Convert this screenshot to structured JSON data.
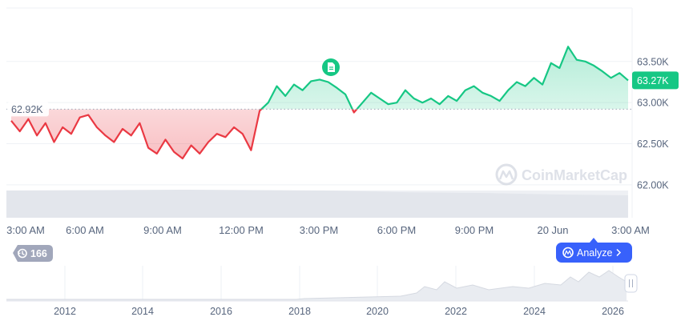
{
  "chart_data": {
    "type": "area",
    "series": [
      {
        "name": "",
        "x": [
          "3:00 AM",
          "3:20 AM",
          "3:40 AM",
          "4:00 AM",
          "4:20 AM",
          "4:40 AM",
          "5:00 AM",
          "5:20 AM",
          "5:40 AM",
          "6:00 AM",
          "6:20 AM",
          "6:40 AM",
          "7:00 AM",
          "7:20 AM",
          "7:40 AM",
          "8:00 AM",
          "8:20 AM",
          "8:40 AM",
          "9:00 AM",
          "9:20 AM",
          "9:40 AM",
          "10:00 AM",
          "10:20 AM",
          "10:40 AM",
          "11:00 AM",
          "11:20 AM",
          "11:40 AM",
          "12:00 PM",
          "12:20 PM",
          "12:40 PM",
          "1:00 PM",
          "1:20 PM",
          "1:40 PM",
          "2:00 PM",
          "2:20 PM",
          "2:40 PM",
          "3:00 PM",
          "3:20 PM",
          "3:40 PM",
          "4:00 PM",
          "4:20 PM",
          "4:40 PM",
          "5:00 PM",
          "5:20 PM",
          "5:40 PM",
          "6:00 PM",
          "6:20 PM",
          "6:40 PM",
          "7:00 PM",
          "7:20 PM",
          "7:40 PM",
          "8:00 PM",
          "8:20 PM",
          "8:40 PM",
          "9:00 PM",
          "9:20 PM",
          "9:40 PM",
          "10:00 PM",
          "10:20 PM",
          "10:40 PM",
          "11:00 PM",
          "11:20 PM",
          "11:40 PM",
          "20 Jun",
          "12:20 AM",
          "12:40 AM",
          "1:00 AM",
          "1:20 AM",
          "1:40 AM",
          "2:00 AM",
          "2:20 AM",
          "2:40 AM",
          "3:00 AM"
        ],
        "values": [
          62.78,
          62.65,
          62.8,
          62.6,
          62.75,
          62.52,
          62.7,
          62.62,
          62.82,
          62.85,
          62.7,
          62.6,
          62.52,
          62.68,
          62.6,
          62.75,
          62.45,
          62.38,
          62.55,
          62.4,
          62.32,
          62.48,
          62.38,
          62.52,
          62.62,
          62.58,
          62.7,
          62.62,
          62.42,
          62.9,
          63.0,
          63.2,
          63.08,
          63.22,
          63.15,
          63.26,
          63.28,
          63.25,
          63.18,
          63.1,
          62.88,
          63.0,
          63.12,
          63.05,
          62.98,
          63.0,
          63.15,
          63.05,
          63.0,
          63.05,
          62.98,
          63.08,
          63.02,
          63.15,
          63.2,
          63.12,
          63.08,
          63.02,
          63.15,
          63.25,
          63.2,
          63.3,
          63.22,
          63.48,
          63.42,
          63.68,
          63.52,
          63.5,
          63.45,
          63.38,
          63.3,
          63.36,
          63.27
        ]
      }
    ],
    "open_price": 62.92,
    "open_label": "62.92K",
    "current_label": "63.27K",
    "y_ticks": [
      "63.50K",
      "63.00K",
      "62.50K",
      "62.00K"
    ],
    "y_tick_values": [
      63.5,
      63.0,
      62.5,
      62.0
    ],
    "ylim": [
      61.6,
      64.15
    ],
    "x_tick_labels": [
      "3:00 AM",
      "6:00 AM",
      "9:00 AM",
      "12:00 PM",
      "3:00 PM",
      "6:00 PM",
      "9:00 PM",
      "20 Jun",
      "3:00 AM"
    ],
    "navigator": {
      "year_labels": [
        "2012",
        "2014",
        "2016",
        "2018",
        "2020",
        "2022",
        "2024",
        "2026"
      ]
    },
    "colors": {
      "up": "#16c784",
      "down": "#ea3943",
      "up_fill": "#d6f5e8",
      "down_fill": "#fbd5d7",
      "brand": "#3861fb",
      "badge_gray": "#a1a7bb"
    }
  },
  "watermark": {
    "text": "CoinMarketCap",
    "icon": "coinmarketcap-logo-icon"
  },
  "history_badge": {
    "icon": "history-icon",
    "count": "166"
  },
  "analyze_button": {
    "label": "Analyze",
    "icon": "analyze-logo-icon",
    "chevron": "chevron-right-icon"
  },
  "news_marker": {
    "icon": "document-icon"
  },
  "navigator_handle": {
    "icon": "drag-handle-icon"
  }
}
